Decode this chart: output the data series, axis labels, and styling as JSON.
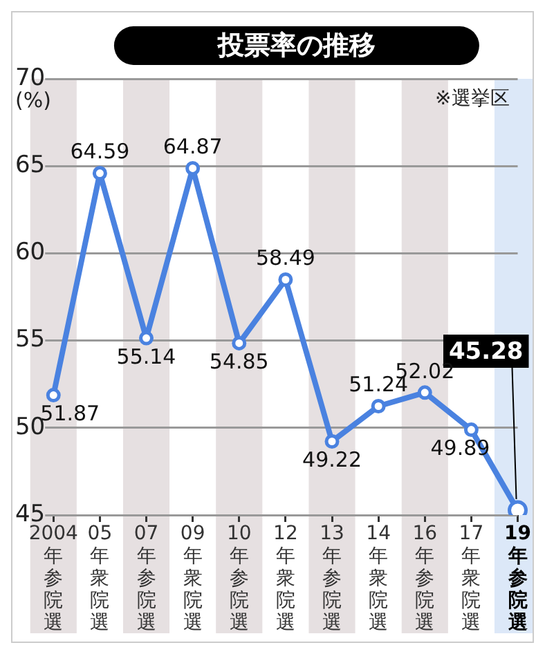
{
  "chart_data": {
    "type": "line",
    "title": "投票率の推移",
    "ylabel": "(%)",
    "annotations": [
      "※選挙区",
      {
        "text": "45.28",
        "x": "19年参院選",
        "y": 45.28
      }
    ],
    "categories": [
      "2004年参院選",
      "05年衆院選",
      "07年参院選",
      "09年衆院選",
      "10年参院選",
      "12年衆院選",
      "13年参院選",
      "14年衆院選",
      "16年参院選",
      "17年衆院選",
      "19年参院選"
    ],
    "series": [
      {
        "color": "#4a82e0",
        "values": [
          51.87,
          64.59,
          55.14,
          64.87,
          54.85,
          58.49,
          49.22,
          51.24,
          52.02,
          49.89,
          45.28
        ],
        "value_labels": [
          "51.87",
          "64.59",
          "55.14",
          "64.87",
          "54.85",
          "58.49",
          "49.22",
          "51.24",
          "52.02",
          "49.89",
          null
        ]
      }
    ],
    "ylim": [
      45,
      70
    ],
    "yticks": [
      45,
      50,
      55,
      60,
      65,
      70
    ],
    "grid": "y",
    "legend": false,
    "marker": "circle",
    "bands": [
      {
        "axis": "x",
        "from": "2004年参院選",
        "to": "2004年参院選",
        "color": "#e6e0e1"
      },
      {
        "axis": "x",
        "from": "07年参院選",
        "to": "07年参院選",
        "color": "#e6e0e1"
      },
      {
        "axis": "x",
        "from": "10年参院選",
        "to": "10年参院選",
        "color": "#e6e0e1"
      },
      {
        "axis": "x",
        "from": "13年参院選",
        "to": "13年参院選",
        "color": "#e6e0e1"
      },
      {
        "axis": "x",
        "from": "16年参院選",
        "to": "16年参院選",
        "color": "#e6e0e1"
      },
      {
        "axis": "x",
        "from": "19年参院選",
        "to": "19年参院選",
        "color": "#dce8f8"
      }
    ]
  }
}
